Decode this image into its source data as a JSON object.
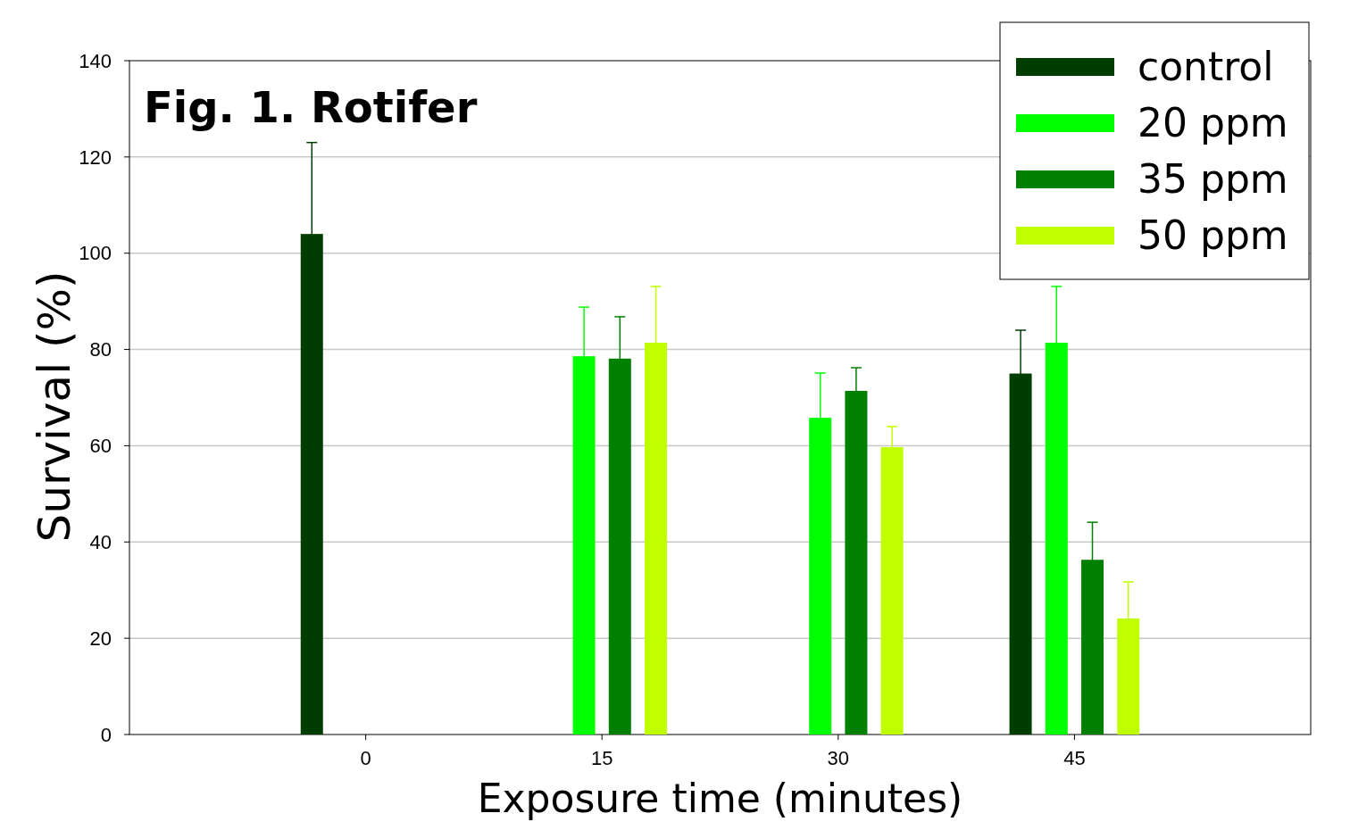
{
  "chart_data": {
    "type": "bar",
    "title": "Fig. 1. Rotifer",
    "xlabel": "Exposure time (minutes)",
    "ylabel": "Survival (%)",
    "categories": [
      "0",
      "15",
      "30",
      "45"
    ],
    "series": [
      {
        "name": "control",
        "color": "#003d00",
        "values": [
          104,
          null,
          null,
          75
        ],
        "errors": [
          19,
          null,
          null,
          9
        ]
      },
      {
        "name": "20 ppm",
        "color": "#00ff00",
        "values": [
          null,
          78.6,
          65.8,
          81.4
        ],
        "errors": [
          null,
          10.2,
          9.3,
          11.7
        ]
      },
      {
        "name": "35 ppm",
        "color": "#008000",
        "values": [
          null,
          78.1,
          71.4,
          36.3
        ],
        "errors": [
          null,
          8.7,
          4.8,
          7.8
        ]
      },
      {
        "name": "50 ppm",
        "color": "#c0ff00",
        "values": [
          null,
          81.4,
          59.7,
          24.1
        ],
        "errors": [
          null,
          11.7,
          4.3,
          7.6
        ]
      }
    ],
    "ylim": [
      0,
      140
    ],
    "yticks": [
      0,
      20,
      40,
      60,
      80,
      100,
      120,
      140
    ],
    "grid": "y",
    "legend": "top right"
  }
}
